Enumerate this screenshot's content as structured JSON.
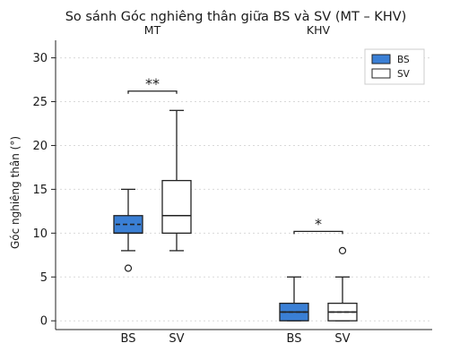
{
  "chart_data": {
    "type": "box",
    "title": "So sánh Góc nghiêng thân giữa BS và SV (MT – KHV)",
    "ylabel": "Góc nghiêng thân (°)",
    "ylim": [
      -1,
      32
    ],
    "yticks": [
      0,
      5,
      10,
      15,
      20,
      25,
      30
    ],
    "grid": true,
    "legend": {
      "placement": "top-right",
      "entries": [
        {
          "name": "BS",
          "color": "#3a7fd5"
        },
        {
          "name": "SV",
          "color": "#ffffff"
        }
      ]
    },
    "groups": [
      {
        "label": "MT",
        "significance": "**",
        "significance_y": 26.2,
        "boxes": [
          {
            "category": "BS",
            "color": "#3a7fd5",
            "whisker_low": 8,
            "q1": 10,
            "median": 10,
            "q3": 12,
            "whisker_high": 15,
            "mean": 11,
            "outliers": [
              6
            ]
          },
          {
            "category": "SV",
            "color": "#ffffff",
            "whisker_low": 8,
            "q1": 10,
            "median": 12,
            "q3": 16,
            "whisker_high": 24,
            "mean": 12,
            "outliers": []
          }
        ]
      },
      {
        "label": "KHV",
        "significance": "*",
        "significance_y": 10.2,
        "boxes": [
          {
            "category": "BS",
            "color": "#3a7fd5",
            "whisker_low": 0,
            "q1": 0,
            "median": 1,
            "q3": 2,
            "whisker_high": 5,
            "mean": 1,
            "outliers": []
          },
          {
            "category": "SV",
            "color": "#ffffff",
            "whisker_low": 0,
            "q1": 0,
            "median": 1,
            "q3": 2,
            "whisker_high": 5,
            "mean": 1,
            "outliers": [
              8
            ]
          }
        ]
      }
    ]
  }
}
